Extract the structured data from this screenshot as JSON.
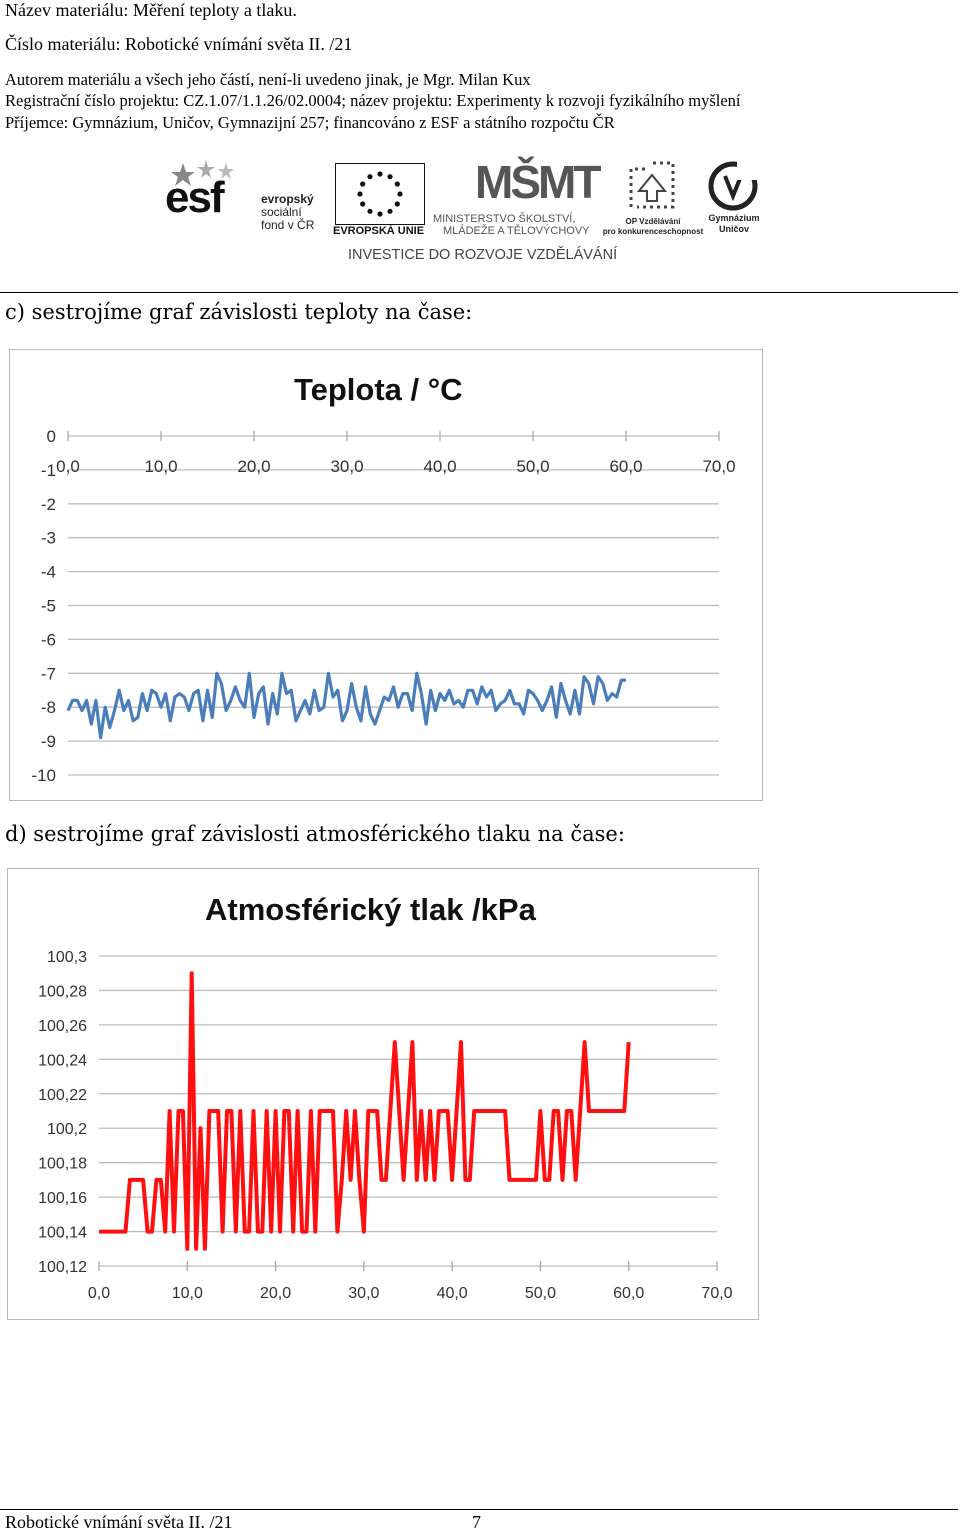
{
  "header": {
    "material_name": "Název materiálu: Měření teploty a tlaku.",
    "material_number": "Číslo materiálu: Robotické vnímání světa II. /21",
    "author": "Autorem materiálu a všech jeho částí, není-li uvedeno jinak, je Mgr. Milan Kux",
    "registration": "Registrační číslo projektu: CZ.1.07/1.1.26/02.0004; název projektu: Experimenty k rozvoji fyzikálního myšlení",
    "recipient": "Příjemce: Gymnázium, Uničov, Gymnazijní 257; financováno z ESF a státního rozpočtu ČR"
  },
  "logos": {
    "esf_letters": "esf",
    "esf_line1": "evropský",
    "esf_line2": "sociální",
    "esf_line3": "fond v ČR",
    "eu_label": "EVROPSKÁ UNIE",
    "msmt_mark": "MŠMT",
    "msmt_line1": "MINISTERSTVO ŠKOLSTVÍ,",
    "msmt_line2": "MLÁDEŽE A TĚLOVÝCHOVY",
    "op_line1": "OP Vzdělávání",
    "op_line2": "pro konkurenceschopnost",
    "gym_line1": "Gymnázium",
    "gym_line2": "Uničov",
    "investice": "INVESTICE DO ROZVOJE VZDĚLÁVÁNÍ"
  },
  "sections": {
    "c": "c) sestrojíme graf závislosti teploty na čase:",
    "d": "d) sestrojíme graf závislosti atmosférického tlaku na čase:"
  },
  "chart_data": [
    {
      "type": "line",
      "title": "Teplota / °C",
      "xlabel": "",
      "ylabel": "",
      "xlim": [
        0,
        70
      ],
      "ylim": [
        -10,
        0
      ],
      "x_ticks": [
        "0,0",
        "10,0",
        "20,0",
        "30,0",
        "40,0",
        "50,0",
        "60,0",
        "70,0"
      ],
      "y_ticks": [
        "0",
        "-1",
        "-2",
        "-3",
        "-4",
        "-5",
        "-6",
        "-7",
        "-8",
        "-9",
        "-10"
      ],
      "x_axis_position": "top",
      "grid": true,
      "color": "#4a7ebb",
      "series": [
        {
          "x": [
            0,
            0.5,
            1,
            1.5,
            2,
            2.5,
            3,
            3.5,
            4,
            4.5,
            5,
            5.5,
            6,
            6.5,
            7,
            7.5,
            8,
            8.5,
            9,
            9.5,
            10,
            10.5,
            11,
            11.5,
            12,
            12.5,
            13,
            13.5,
            14,
            14.5,
            15,
            15.5,
            16,
            16.5,
            17,
            17.5,
            18,
            18.5,
            19,
            19.5,
            20,
            20.5,
            21,
            21.5,
            22,
            22.5,
            23,
            23.5,
            24,
            24.5,
            25,
            25.5,
            26,
            26.5,
            27,
            27.5,
            28,
            28.5,
            29,
            29.5,
            30,
            30.5,
            31,
            31.5,
            32,
            32.5,
            33,
            33.5,
            34,
            34.5,
            35,
            35.5,
            36,
            36.5,
            37,
            37.5,
            38,
            38.5,
            39,
            39.5,
            40,
            40.5,
            41,
            41.5,
            42,
            42.5,
            43,
            43.5,
            44,
            44.5,
            45,
            45.5,
            46,
            46.5,
            47,
            47.5,
            48,
            48.5,
            49,
            49.5,
            50,
            50.5,
            51,
            51.5,
            52,
            52.5,
            53,
            53.5,
            54,
            54.5,
            55,
            55.5,
            56,
            56.5,
            57,
            57.5,
            58,
            58.5,
            59,
            59.5,
            60
          ],
          "y": [
            -8.1,
            -7.8,
            -7.8,
            -8.1,
            -7.8,
            -8.5,
            -7.8,
            -8.9,
            -8.0,
            -8.6,
            -8.1,
            -7.5,
            -8.1,
            -7.8,
            -8.4,
            -8.3,
            -7.6,
            -8.1,
            -7.5,
            -7.6,
            -8.0,
            -7.6,
            -8.4,
            -7.7,
            -7.6,
            -7.7,
            -8.1,
            -7.6,
            -7.5,
            -8.4,
            -7.5,
            -8.3,
            -7.0,
            -7.3,
            -8.1,
            -7.8,
            -7.4,
            -7.8,
            -8.0,
            -7.0,
            -8.3,
            -7.6,
            -7.4,
            -8.5,
            -7.6,
            -8.2,
            -7.0,
            -7.6,
            -7.5,
            -8.4,
            -8.1,
            -7.8,
            -8.2,
            -7.5,
            -8.1,
            -8.0,
            -7.0,
            -7.7,
            -7.5,
            -8.4,
            -8.1,
            -7.3,
            -8.0,
            -8.4,
            -7.4,
            -8.2,
            -8.5,
            -8.1,
            -7.7,
            -7.8,
            -7.4,
            -8.0,
            -7.6,
            -7.6,
            -8.1,
            -7.0,
            -7.6,
            -8.5,
            -7.5,
            -8.1,
            -7.6,
            -7.8,
            -7.5,
            -7.9,
            -7.8,
            -8.0,
            -7.5,
            -7.5,
            -7.9,
            -7.4,
            -7.7,
            -7.5,
            -8.1,
            -7.9,
            -7.8,
            -7.5,
            -7.9,
            -7.9,
            -8.2,
            -7.5,
            -7.6,
            -7.8,
            -8.1,
            -7.8,
            -7.4,
            -8.3,
            -7.3,
            -7.8,
            -8.2,
            -7.5,
            -8.2,
            -7.1,
            -7.3,
            -7.9,
            -7.1,
            -7.3,
            -7.8,
            -7.6,
            -7.7,
            -7.2,
            -7.2
          ]
        }
      ]
    },
    {
      "type": "line",
      "title": "Atmosférický tlak /kPa",
      "xlabel": "",
      "ylabel": "",
      "xlim": [
        0,
        70
      ],
      "ylim": [
        100.12,
        100.3
      ],
      "x_ticks": [
        "0,0",
        "10,0",
        "20,0",
        "30,0",
        "40,0",
        "50,0",
        "60,0",
        "70,0"
      ],
      "y_ticks": [
        "100,3",
        "100,28",
        "100,26",
        "100,24",
        "100,22",
        "100,2",
        "100,18",
        "100,16",
        "100,14",
        "100,12"
      ],
      "x_axis_position": "bottom",
      "grid": true,
      "color": "#ff1010",
      "series": [
        {
          "x": [
            0,
            0.5,
            1,
            1.5,
            2,
            2.5,
            3,
            3.5,
            4,
            4.5,
            5,
            5.5,
            6,
            6.5,
            7,
            7.5,
            8,
            8.5,
            9,
            9.5,
            10,
            10.5,
            11,
            11.5,
            12,
            12.5,
            13,
            13.5,
            14,
            14.5,
            15,
            15.5,
            16,
            16.5,
            17,
            17.5,
            18,
            18.5,
            19,
            19.5,
            20,
            20.5,
            21,
            21.5,
            22,
            22.5,
            23,
            23.5,
            24,
            24.5,
            25,
            25.5,
            26,
            26.5,
            27,
            27.5,
            28,
            28.5,
            29,
            29.5,
            30,
            30.5,
            31,
            31.5,
            32,
            32.5,
            33,
            33.5,
            34,
            34.5,
            35,
            35.5,
            36,
            36.5,
            37,
            37.5,
            38,
            38.5,
            39,
            39.5,
            40,
            40.5,
            41,
            41.5,
            42,
            42.5,
            43,
            43.5,
            44,
            44.5,
            45,
            45.5,
            46,
            46.5,
            47,
            47.5,
            48,
            48.5,
            49,
            49.5,
            50,
            50.5,
            51,
            51.5,
            52,
            52.5,
            53,
            53.5,
            54,
            54.5,
            55,
            55.5,
            56,
            56.5,
            57,
            57.5,
            58,
            58.5,
            59,
            59.5,
            60
          ],
          "y": [
            100.14,
            100.14,
            100.14,
            100.14,
            100.14,
            100.14,
            100.14,
            100.17,
            100.17,
            100.17,
            100.17,
            100.14,
            100.14,
            100.17,
            100.17,
            100.14,
            100.21,
            100.14,
            100.21,
            100.21,
            100.13,
            100.29,
            100.13,
            100.2,
            100.13,
            100.21,
            100.21,
            100.21,
            100.14,
            100.21,
            100.21,
            100.14,
            100.21,
            100.14,
            100.14,
            100.21,
            100.14,
            100.14,
            100.21,
            100.14,
            100.21,
            100.14,
            100.21,
            100.21,
            100.14,
            100.21,
            100.14,
            100.14,
            100.21,
            100.14,
            100.21,
            100.21,
            100.21,
            100.21,
            100.14,
            100.17,
            100.21,
            100.17,
            100.21,
            100.17,
            100.14,
            100.21,
            100.21,
            100.21,
            100.17,
            100.17,
            100.21,
            100.25,
            100.21,
            100.17,
            100.21,
            100.25,
            100.17,
            100.21,
            100.17,
            100.21,
            100.17,
            100.21,
            100.21,
            100.21,
            100.17,
            100.21,
            100.25,
            100.17,
            100.17,
            100.21,
            100.21,
            100.21,
            100.21,
            100.21,
            100.21,
            100.21,
            100.21,
            100.17,
            100.17,
            100.17,
            100.17,
            100.17,
            100.17,
            100.17,
            100.21,
            100.17,
            100.17,
            100.21,
            100.21,
            100.17,
            100.21,
            100.21,
            100.17,
            100.21,
            100.25,
            100.21,
            100.21,
            100.21,
            100.21,
            100.21,
            100.21,
            100.21,
            100.21,
            100.21,
            100.25
          ]
        }
      ]
    }
  ],
  "footer": {
    "left": "Robotické vnímání světa II. /21",
    "page": "7"
  }
}
